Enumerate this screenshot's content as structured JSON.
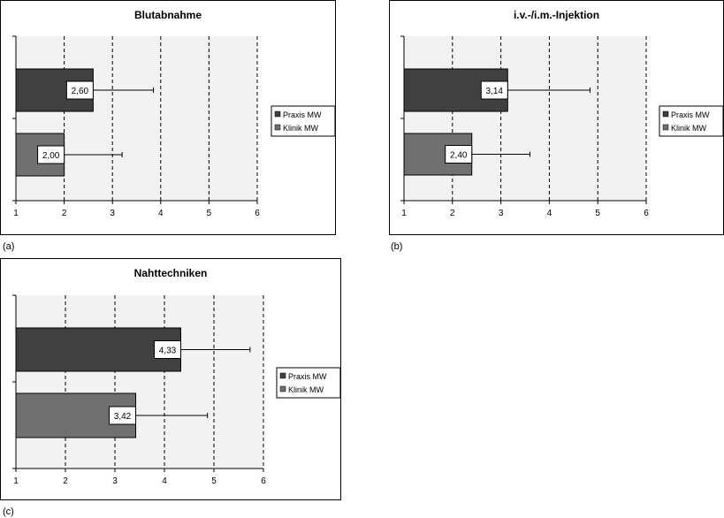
{
  "chart_data": [
    {
      "type": "bar",
      "orientation": "horizontal",
      "title": "Blutabnahme",
      "panel_label": "(a)",
      "categories": [
        "Praxis MW",
        "Klinik MW"
      ],
      "series": [
        {
          "name": "Praxis MW",
          "value": 2.6,
          "label": "2,60",
          "error_plus": 1.25,
          "color": "#404040"
        },
        {
          "name": "Klinik MW",
          "value": 2.0,
          "label": "2,00",
          "error_plus": 1.2,
          "color": "#707070"
        }
      ],
      "xlim": [
        1,
        6
      ],
      "xticks": [
        "1",
        "2",
        "3",
        "4",
        "5",
        "6"
      ],
      "grid": "dashed vertical",
      "legend": "right"
    },
    {
      "type": "bar",
      "orientation": "horizontal",
      "title": "i.v.-/i.m.-Injektion",
      "panel_label": "(b)",
      "categories": [
        "Praxis MW",
        "Klinik MW"
      ],
      "series": [
        {
          "name": "Praxis MW",
          "value": 3.14,
          "label": "3,14",
          "error_plus": 1.7,
          "color": "#404040"
        },
        {
          "name": "Klinik MW",
          "value": 2.4,
          "label": "2,40",
          "error_plus": 1.2,
          "color": "#707070"
        }
      ],
      "xlim": [
        1,
        6
      ],
      "xticks": [
        "1",
        "2",
        "3",
        "4",
        "5",
        "6"
      ],
      "grid": "dashed vertical",
      "legend": "right"
    },
    {
      "type": "bar",
      "orientation": "horizontal",
      "title": "Nahttechniken",
      "panel_label": "(c)",
      "categories": [
        "Praxis MW",
        "Klinik MW"
      ],
      "series": [
        {
          "name": "Praxis MW",
          "value": 4.33,
          "label": "4,33",
          "error_plus": 1.4,
          "color": "#404040"
        },
        {
          "name": "Klinik MW",
          "value": 3.42,
          "label": "3,42",
          "error_plus": 1.45,
          "color": "#707070"
        }
      ],
      "xlim": [
        1,
        6
      ],
      "xticks": [
        "1",
        "2",
        "3",
        "4",
        "5",
        "6"
      ],
      "grid": "dashed vertical",
      "legend": "right"
    }
  ]
}
